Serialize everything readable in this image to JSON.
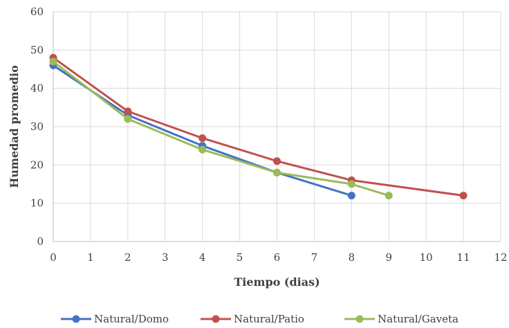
{
  "chart_data": {
    "type": "line",
    "title": "",
    "xlabel": "Tiempo (dias)",
    "ylabel": "Humedad promedio",
    "xlim": [
      0,
      12
    ],
    "ylim": [
      0,
      60
    ],
    "xticks": [
      0,
      1,
      2,
      3,
      4,
      5,
      6,
      7,
      8,
      9,
      10,
      11,
      12
    ],
    "yticks": [
      0,
      10,
      20,
      30,
      40,
      50,
      60
    ],
    "grid": true,
    "legend_position": "bottom",
    "series": [
      {
        "name": "Natural/Domo",
        "color": "#4472c4",
        "points": [
          [
            0,
            46
          ],
          [
            2,
            33
          ],
          [
            4,
            25
          ],
          [
            6,
            18
          ],
          [
            8,
            12
          ]
        ]
      },
      {
        "name": "Natural/Patio",
        "color": "#c0504d",
        "points": [
          [
            0,
            48
          ],
          [
            2,
            34
          ],
          [
            4,
            27
          ],
          [
            6,
            21
          ],
          [
            8,
            16
          ],
          [
            11,
            12
          ]
        ]
      },
      {
        "name": "Natural/Gaveta",
        "color": "#9bbb59",
        "points": [
          [
            0,
            47
          ],
          [
            2,
            32
          ],
          [
            4,
            24
          ],
          [
            6,
            18
          ],
          [
            8,
            15
          ],
          [
            9,
            12
          ]
        ]
      }
    ]
  }
}
